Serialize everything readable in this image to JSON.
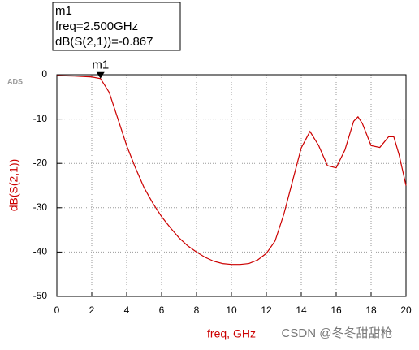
{
  "chart_data": {
    "type": "line",
    "brand": "ADS",
    "x_label": "freq, GHz",
    "y_label": "dB(S(2,1))",
    "watermark": "CSDN @冬冬甜甜枪",
    "x": [
      0,
      1,
      2,
      2.5,
      3,
      3.5,
      4,
      4.5,
      5,
      5.5,
      6,
      6.5,
      7,
      7.5,
      8,
      8.5,
      9,
      9.5,
      10,
      10.5,
      11,
      11.5,
      12,
      12.5,
      13,
      13.5,
      14,
      14.5,
      15,
      15.5,
      16,
      16.5,
      17,
      17.25,
      17.5,
      18,
      18.5,
      19,
      19.3,
      19.6,
      20
    ],
    "series": [
      {
        "color": "#cc0000",
        "values": [
          -0.2,
          -0.3,
          -0.5,
          -0.867,
          -4,
          -10,
          -16,
          -21,
          -25.5,
          -29,
          -32,
          -34.5,
          -36.8,
          -38.6,
          -40,
          -41.2,
          -42.1,
          -42.6,
          -42.8,
          -42.8,
          -42.6,
          -41.8,
          -40.3,
          -37.5,
          -31.5,
          -24,
          -16.5,
          -12.8,
          -16,
          -20.5,
          -21,
          -17,
          -10.5,
          -9.5,
          -11,
          -16,
          -16.4,
          -14,
          -14,
          -18,
          -25
        ]
      }
    ],
    "xlim": [
      0,
      20
    ],
    "xticks": [
      0,
      2,
      4,
      6,
      8,
      10,
      12,
      14,
      16,
      18,
      20
    ],
    "ylim": [
      -50,
      0
    ],
    "yticks": [
      -50,
      -40,
      -30,
      -20,
      -10,
      0
    ],
    "grid": true,
    "marker": {
      "name": "m1",
      "x": 2.5,
      "y": -0.867,
      "readout": [
        "m1",
        "freq=2.500GHz",
        "dB(S(2,1))=-0.867"
      ]
    }
  }
}
